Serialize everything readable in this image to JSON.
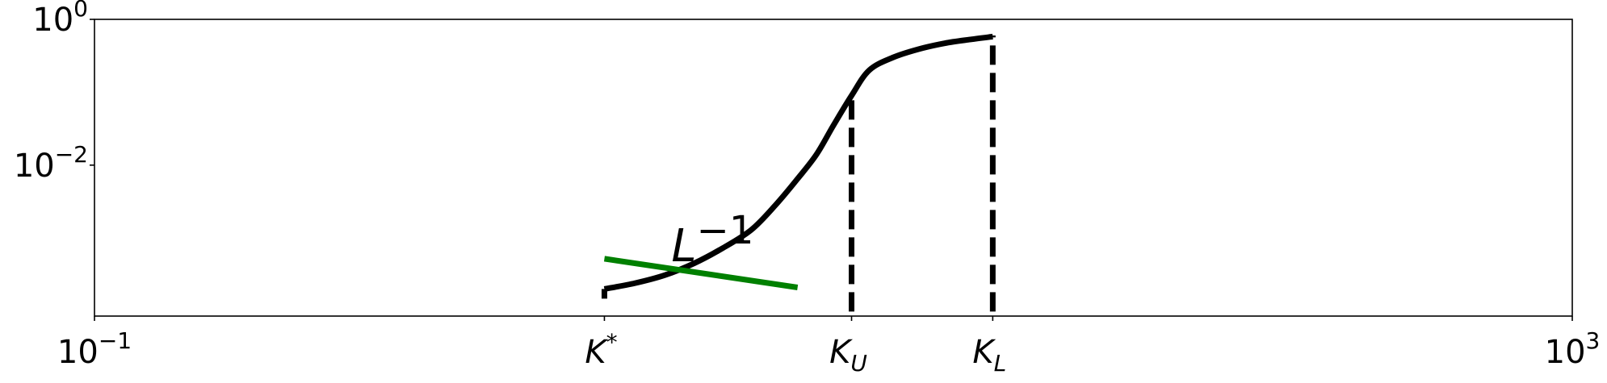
{
  "chart_data": {
    "type": "line",
    "title": "",
    "xlabel": "",
    "ylabel": "",
    "x_scale": "log",
    "y_scale": "log",
    "xlim": [
      0.1,
      1000
    ],
    "ylim": [
      8.5e-05,
      1
    ],
    "x_ticks": [
      {
        "value": 0.1,
        "base": "10",
        "exp": "−1"
      },
      {
        "value": 1000,
        "base": "10",
        "exp": "3"
      }
    ],
    "y_ticks": [
      {
        "value": 1,
        "base": "10",
        "exp": "0"
      },
      {
        "value": 0.01,
        "base": "10",
        "exp": "−2"
      }
    ],
    "x_marker_labels": [
      {
        "name": "K*",
        "base": "K",
        "sup": "*",
        "sub": "",
        "value": 2.4
      },
      {
        "name": "K_U",
        "base": "K",
        "sup": "",
        "sub": "U",
        "value": 11.2
      },
      {
        "name": "K_L",
        "base": "K",
        "sup": "",
        "sub": "L",
        "value": 27
      }
    ],
    "series": [
      {
        "color": "#000000",
        "style": "solid",
        "x": [
          2.4,
          2.9,
          3.5,
          4.2,
          5.0,
          6.0,
          7.0,
          8.0,
          9.0,
          10.0,
          11.2,
          12.5,
          14.5,
          17.0,
          20.0,
          23.5,
          27.0
        ],
        "y": [
          0.0002,
          0.00024,
          0.00031,
          0.00045,
          0.00072,
          0.0013,
          0.0029,
          0.0065,
          0.014,
          0.035,
          0.09,
          0.2,
          0.3,
          0.39,
          0.47,
          0.53,
          0.58
        ]
      },
      {
        "color": "#008000",
        "style": "solid",
        "x": [
          2.4,
          8.0
        ],
        "y": [
          0.00052,
          0.00021
        ]
      }
    ],
    "vertical_lines": [
      {
        "x": 11.2,
        "y_from": 9.8e-05,
        "y_to": 0.1,
        "style": "dashed",
        "color": "#000000"
      },
      {
        "x": 27.0,
        "y_from": 9.8e-05,
        "y_to": 0.6,
        "style": "dashed",
        "color": "#000000"
      }
    ],
    "annotations": [
      {
        "base": "L",
        "sup": "−1",
        "x": 3.5,
        "y": 0.0008
      }
    ],
    "grid": false,
    "legend": "none"
  }
}
